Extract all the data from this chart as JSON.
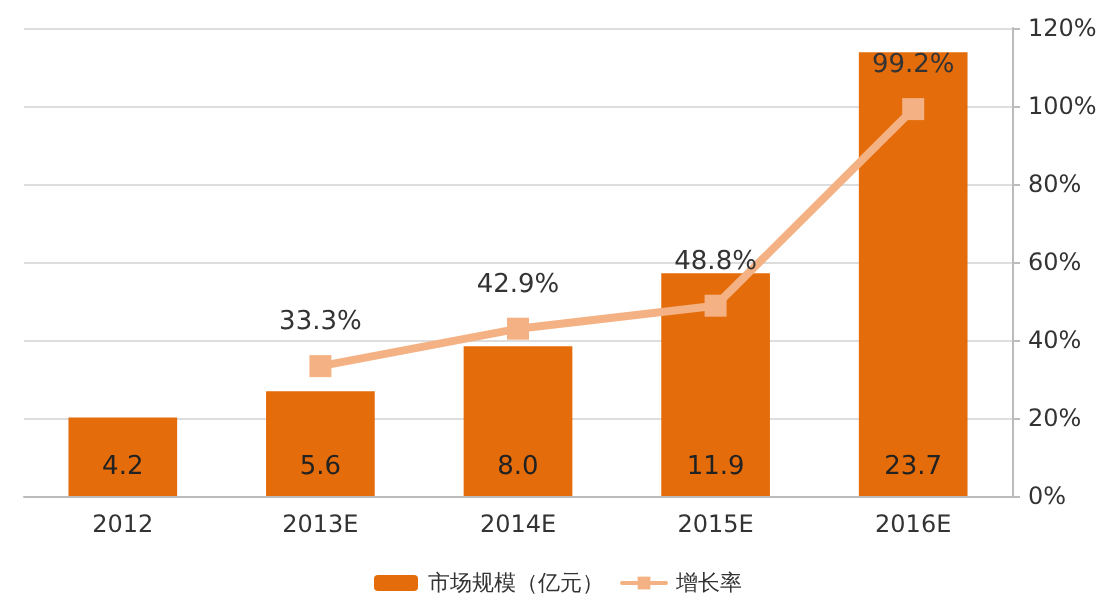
{
  "chart_data": {
    "type": "bar",
    "categories": [
      "2012",
      "2013E",
      "2014E",
      "2015E",
      "2016E"
    ],
    "series": [
      {
        "name": "市场规模（亿元）",
        "color": "#e46c0a",
        "values": [
          4.2,
          5.6,
          8.0,
          11.9,
          23.7
        ],
        "value_labels": [
          "4.2",
          "5.6",
          "8.0",
          "11.9",
          "23.7"
        ]
      },
      {
        "name": "增长率",
        "type": "line",
        "axis": "y2",
        "color": "#f4b183",
        "values": [
          null,
          33.3,
          42.9,
          48.8,
          99.2
        ],
        "value_labels": [
          null,
          "33.3%",
          "42.9%",
          "48.8%",
          "99.2%"
        ]
      }
    ],
    "y2lim": [
      0,
      120
    ],
    "y2ticks": [
      {
        "value": 0,
        "label": "0%"
      },
      {
        "value": 20,
        "label": "20%"
      },
      {
        "value": 40,
        "label": "40%"
      },
      {
        "value": 60,
        "label": "60%"
      },
      {
        "value": 80,
        "label": "80%"
      },
      {
        "value": 100,
        "label": "100%"
      },
      {
        "value": 120,
        "label": "120%"
      }
    ],
    "grid": "y2",
    "legend": "bottom",
    "marker": "square",
    "line_style": "solid"
  }
}
